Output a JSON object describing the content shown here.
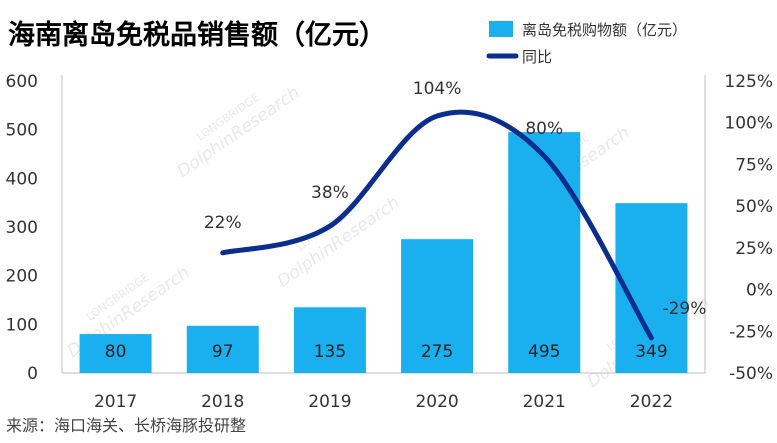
{
  "chart_data": {
    "type": "bar",
    "title": "海南离岛免税品销售额（亿元）",
    "source": "来源：海口海关、长桥海豚投研整",
    "watermark": [
      "LONGBRIDGE",
      "DolphinResearch"
    ],
    "categories": [
      "2017",
      "2018",
      "2019",
      "2020",
      "2021",
      "2022"
    ],
    "series": [
      {
        "name": "离岛免税购物额（亿元）",
        "type": "bar",
        "axis": "left",
        "color": "#1AB0F0",
        "values": [
          80,
          97,
          135,
          275,
          495,
          349
        ],
        "labels": [
          "80",
          "97",
          "135",
          "275",
          "495",
          "349"
        ]
      },
      {
        "name": "同比",
        "type": "line",
        "axis": "right",
        "color": "#0B2D8E",
        "values": [
          null,
          22,
          38,
          104,
          80,
          -29
        ],
        "labels": [
          "",
          "22%",
          "38%",
          "104%",
          "80%",
          "-29%"
        ]
      }
    ],
    "y_left": {
      "min": 0,
      "max": 600,
      "ticks": [
        "0",
        "100",
        "200",
        "300",
        "400",
        "500",
        "600"
      ]
    },
    "y_right": {
      "min": -50,
      "max": 125,
      "ticks": [
        "-50%",
        "-25%",
        "0%",
        "25%",
        "50%",
        "75%",
        "100%",
        "125%"
      ]
    },
    "legend_position": "top-right",
    "grid": false
  }
}
